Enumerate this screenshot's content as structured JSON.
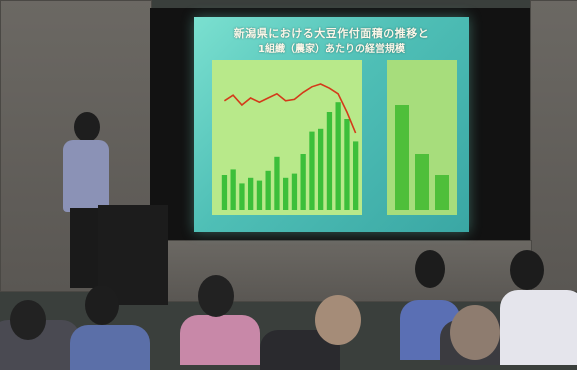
{
  "slide": {
    "title_line1": "新潟県における大豆作付面積の推移と",
    "title_line2": "1組織（農家）あたりの経営規模"
  },
  "chart_data": [
    {
      "type": "bar",
      "title": "",
      "series": [
        {
          "values": [
            2500,
            2900,
            1900,
            2300,
            2100,
            2800,
            3800,
            2300,
            2600,
            4000,
            5600,
            5800,
            7000,
            7700,
            6500,
            4900
          ]
        }
      ],
      "ylim": [
        0,
        10000
      ],
      "colors": {
        "bars": "#3cbf3a",
        "line": "#d43a1a",
        "plot_bg": "#b8e98a"
      }
    },
    {
      "type": "bar",
      "title": "",
      "categories": [
        "",
        "",
        ""
      ],
      "series": [
        {
          "values": [
            75,
            40,
            25
          ]
        }
      ],
      "ylim": [
        0,
        100
      ],
      "colors": {
        "bars": "#4fbf3a",
        "plot_bg": "#a7dd7c"
      }
    }
  ]
}
